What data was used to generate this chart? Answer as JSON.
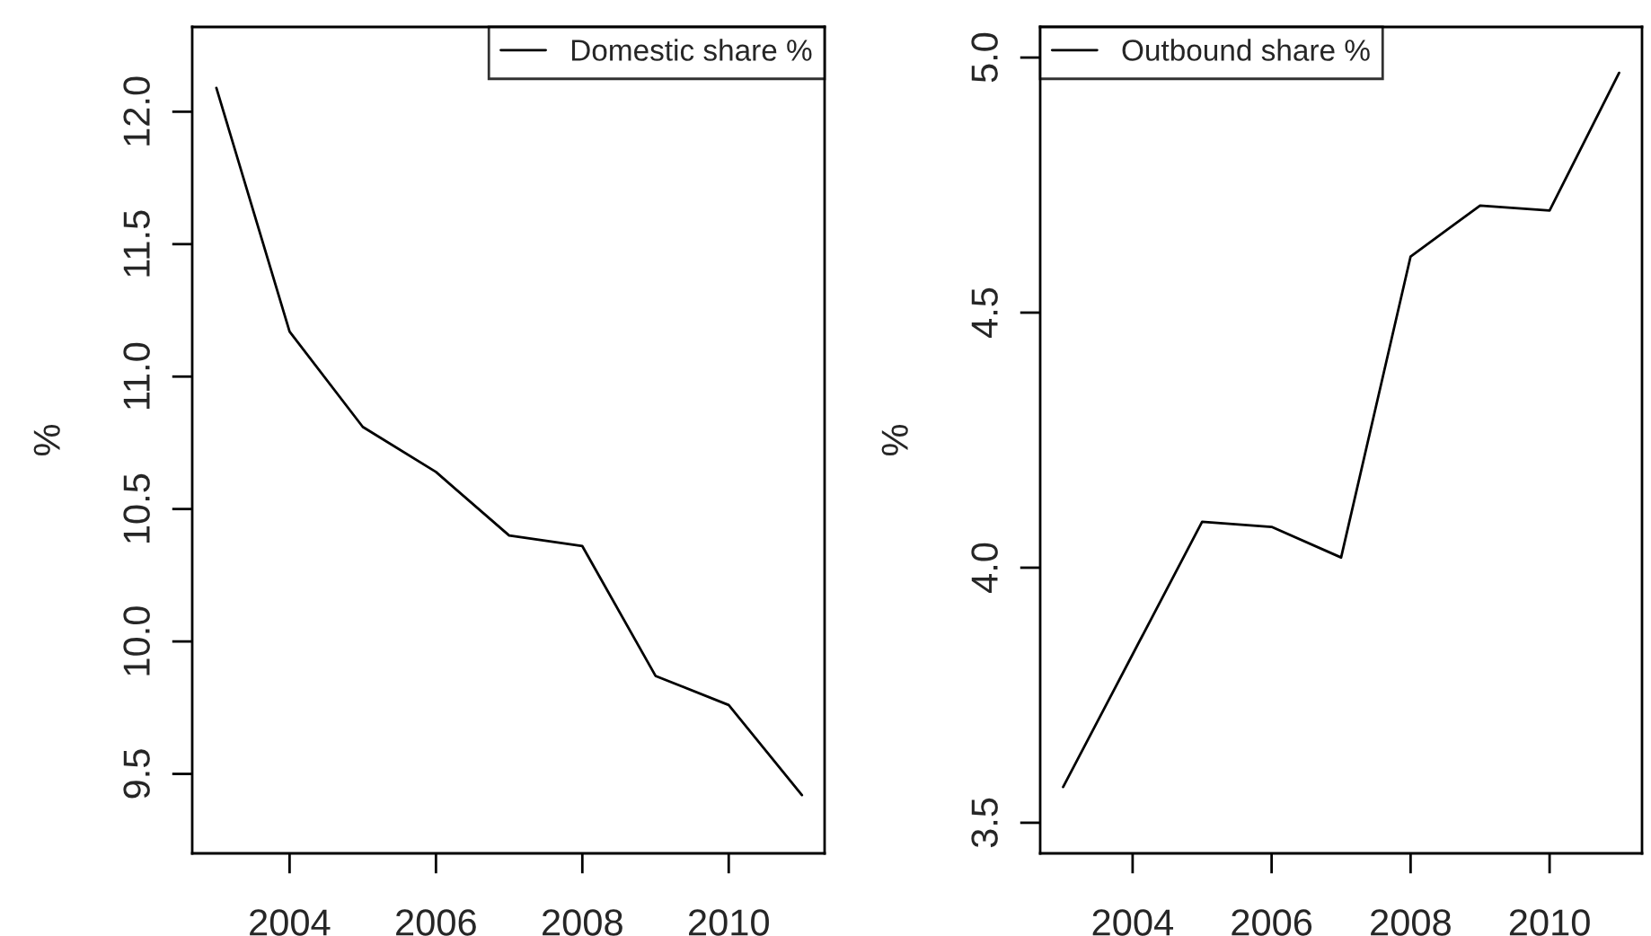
{
  "chart_data": [
    {
      "type": "line",
      "ylabel": "%",
      "x": [
        2003,
        2004,
        2005,
        2006,
        2007,
        2008,
        2009,
        2010,
        2011
      ],
      "series": [
        {
          "name": "Domestic share %",
          "color": "#000000",
          "values": [
            12.09,
            11.17,
            10.81,
            10.64,
            10.4,
            10.36,
            9.87,
            9.76,
            9.42
          ]
        }
      ],
      "xlim": [
        2002.67,
        2011.31
      ],
      "xticks": [
        2004,
        2006,
        2008,
        2010
      ],
      "ylim": [
        9.2,
        12.32
      ],
      "yticks": [
        9.5,
        {
          "value": 10,
          "label": "10.0"
        },
        10.5,
        {
          "value": 11,
          "label": "11.0"
        },
        11.5,
        {
          "value": 12,
          "label": "12.0"
        }
      ],
      "legend": "top right",
      "grid": false,
      "marker": "none",
      "line_style": "solid"
    },
    {
      "type": "line",
      "ylabel": "%",
      "x": [
        2003,
        2004,
        2005,
        2006,
        2007,
        2008,
        2009,
        2010,
        2011
      ],
      "series": [
        {
          "name": "Outbound share %",
          "color": "#000000",
          "values": [
            3.57,
            3.83,
            4.09,
            4.08,
            4.02,
            4.61,
            4.71,
            4.7,
            4.97
          ]
        }
      ],
      "xlim": [
        2002.67,
        2011.33
      ],
      "xticks": [
        2004,
        2006,
        2008,
        2010
      ],
      "ylim": [
        3.44,
        5.06
      ],
      "yticks": [
        3.5,
        {
          "value": 4,
          "label": "4.0"
        },
        4.5,
        {
          "value": 5,
          "label": "5.0"
        }
      ],
      "legend": "top left",
      "grid": false,
      "marker": "none",
      "line_style": "solid"
    }
  ]
}
